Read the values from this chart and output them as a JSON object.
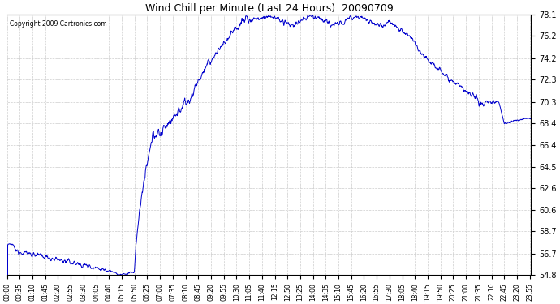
{
  "title": "Wind Chill per Minute (Last 24 Hours)  20090709",
  "copyright": "Copyright 2009 Cartronics.com",
  "line_color": "#0000cc",
  "background_color": "#ffffff",
  "grid_color": "#cccccc",
  "ylim": [
    54.8,
    78.1
  ],
  "yticks": [
    54.8,
    56.7,
    58.7,
    60.6,
    62.6,
    64.5,
    66.4,
    68.4,
    70.3,
    72.3,
    74.2,
    76.2,
    78.1
  ],
  "xtick_labels": [
    "00:00",
    "00:35",
    "01:10",
    "01:45",
    "02:20",
    "02:55",
    "03:30",
    "04:05",
    "04:40",
    "05:15",
    "05:50",
    "06:25",
    "07:00",
    "07:35",
    "08:10",
    "08:45",
    "09:20",
    "09:55",
    "10:30",
    "11:05",
    "11:40",
    "12:15",
    "12:50",
    "13:25",
    "14:00",
    "14:35",
    "15:10",
    "15:45",
    "16:20",
    "16:55",
    "17:30",
    "18:05",
    "18:40",
    "19:15",
    "19:50",
    "20:25",
    "21:00",
    "21:35",
    "22:10",
    "22:45",
    "23:20",
    "23:55"
  ]
}
